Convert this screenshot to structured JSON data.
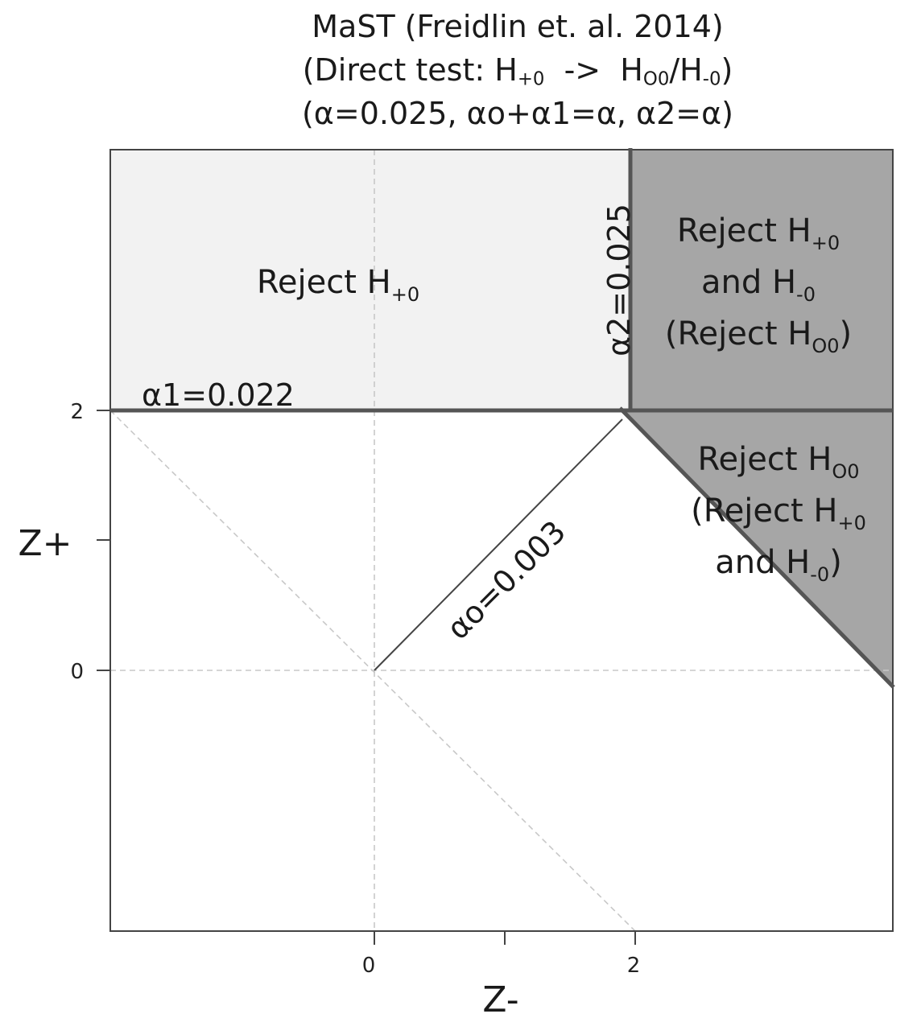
{
  "title": {
    "line1": "MaST (Freidlin et. al. 2014)",
    "line2": {
      "pre": "(Direct test: H",
      "s1": "+0",
      "mid": "  ->  H",
      "s2": "O0",
      "mid2": "/H",
      "s3": "-0",
      "post": ")"
    },
    "line3": "(α=0.025, αo+α1=α, α2=α)"
  },
  "axes": {
    "xlabel": "Z-",
    "ylabel": "Z+",
    "xticks": [
      {
        "value": 0,
        "label": "0"
      },
      {
        "value": 1,
        "label": ""
      },
      {
        "value": 2,
        "label": "2"
      }
    ],
    "yticks": [
      {
        "value": 0,
        "label": "0"
      },
      {
        "value": 1,
        "label": ""
      },
      {
        "value": 2,
        "label": "2"
      }
    ],
    "xlim": [
      -2.03,
      3.97
    ],
    "ylim": [
      -2.0,
      4.0
    ]
  },
  "regions": {
    "reject_h_plus": {
      "text": "Reject H",
      "sub": "+0"
    },
    "reject_both": {
      "line1": {
        "text": "Reject H",
        "sub": "+0"
      },
      "line2": {
        "text": "and H",
        "sub": "-0"
      },
      "line3": {
        "pre": "(Reject H",
        "sub": "O0",
        "post": ")"
      }
    },
    "reject_h00": {
      "line1": {
        "text": "Reject H",
        "sub": "O0"
      },
      "line2": {
        "pre": "(Reject H",
        "sub": "+0"
      },
      "line3": {
        "pre": "and H",
        "sub": "-0",
        "post": ")"
      }
    }
  },
  "boundary_labels": {
    "alpha1": "α1=0.022",
    "alpha2": "α2=0.025",
    "alpha0": "αo=0.003"
  },
  "colors": {
    "light_region": "#f2f2f2",
    "dark_region": "#a6a6a6",
    "boundary": "#555555",
    "grid": "#c8c8c8",
    "frame": "#444444"
  }
}
